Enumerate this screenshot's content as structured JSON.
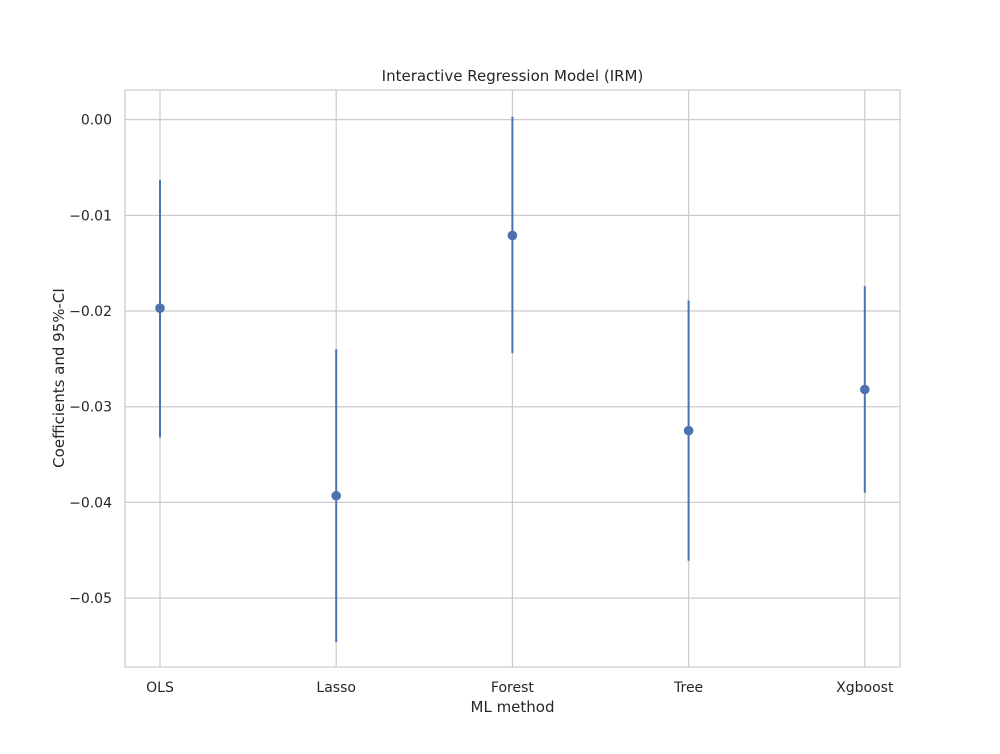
{
  "chart_data": {
    "type": "errorbar",
    "title": "Interactive Regression Model (IRM)",
    "xlabel": "ML method",
    "ylabel": "Coefficients and 95%-CI",
    "categories": [
      "OLS",
      "Lasso",
      "Forest",
      "Tree",
      "Xgboost"
    ],
    "series": [
      {
        "estimates": [
          -0.0197,
          -0.0393,
          -0.0121,
          -0.0325,
          -0.0282
        ],
        "ci_lower": [
          -0.0332,
          -0.0546,
          -0.0244,
          -0.0461,
          -0.039
        ],
        "ci_upper": [
          -0.0063,
          -0.024,
          0.0003,
          -0.0189,
          -0.0174
        ]
      }
    ],
    "ylim": [
      -0.0572,
      0.0031
    ],
    "yticks": [
      0.0,
      -0.01,
      -0.02,
      -0.03,
      -0.04,
      -0.05
    ],
    "ytick_labels": [
      "0.00",
      "−0.01",
      "−0.02",
      "−0.03",
      "−0.04",
      "−0.05"
    ],
    "grid": true,
    "colors": {
      "series": "#4c72b0",
      "grid": "#cccccc",
      "frame": "#cccccc",
      "text": "#262626"
    }
  }
}
